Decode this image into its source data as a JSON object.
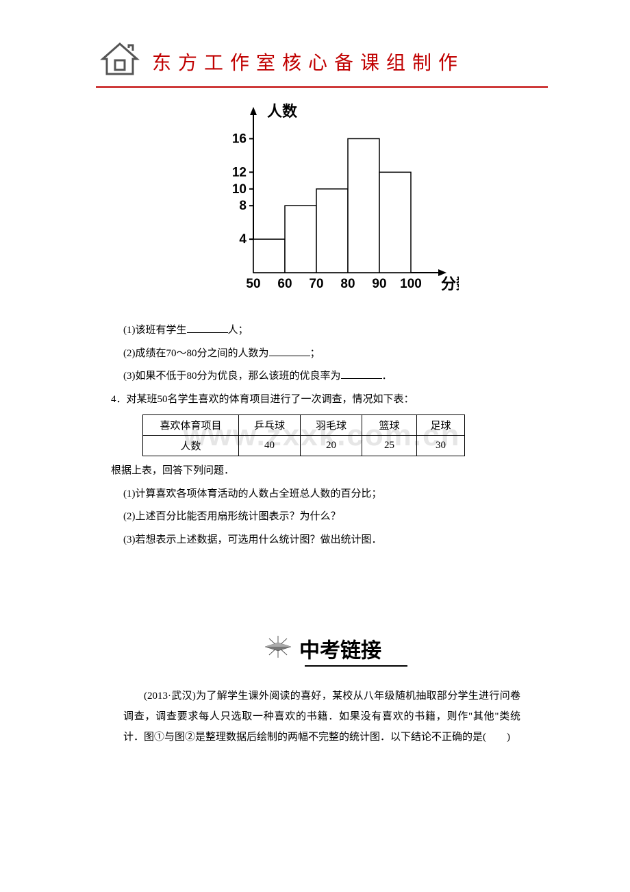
{
  "header": {
    "title": "东方工作室核心备课组制作",
    "logo_caption": "东方工作室",
    "logo_stroke": "#444444",
    "logo_fill": "#666666"
  },
  "histogram": {
    "y_label": "人数",
    "x_label": "分数",
    "y_ticks": [
      4,
      8,
      10,
      12,
      16
    ],
    "x_ticks": [
      50,
      60,
      70,
      80,
      90,
      100
    ],
    "bars": [
      {
        "x0": 50,
        "x1": 60,
        "value": 4
      },
      {
        "x0": 60,
        "x1": 70,
        "value": 8
      },
      {
        "x0": 70,
        "x1": 80,
        "value": 10
      },
      {
        "x0": 80,
        "x1": 90,
        "value": 16
      },
      {
        "x0": 90,
        "x1": 100,
        "value": 12
      }
    ],
    "axis_color": "#000000",
    "bar_fill": "#ffffff",
    "bar_stroke": "#000000",
    "label_font_size": 18,
    "tick_font_size": 17
  },
  "questions_block1": {
    "q1": "(1)该班有学生",
    "q1_suffix": "人；",
    "q2": "(2)成绩在70～80分之间的人数为",
    "q2_suffix": "；",
    "q3": "(3)如果不低于80分为优良，那么该班的优良率为",
    "q3_suffix": "．"
  },
  "question4_intro": "4．对某班50名学生喜欢的体育项目进行了一次调查，情况如下表：",
  "sport_table": {
    "header_col1": "喜欢体育项目",
    "row2_col1": "人数",
    "columns": [
      "乒乓球",
      "羽毛球",
      "篮球",
      "足球"
    ],
    "values": [
      40,
      20,
      25,
      30
    ]
  },
  "watermark": "www.zxxk.com.cn",
  "after_table_line": "根据上表，回答下列问题．",
  "sub_questions": {
    "s1": "(1)计算喜欢各项体育活动的人数占全班总人数的百分比；",
    "s2": "(2)上述百分比能否用扇形统计图表示？为什么？",
    "s3": "(3)若想表示上述数据，可选用什么统计图？做出统计图．"
  },
  "zhongkao": {
    "label": "中考链接",
    "paragraph": "(2013·武汉)为了解学生课外阅读的喜好，某校从八年级随机抽取部分学生进行问卷调查，调查要求每人只选取一种喜欢的书籍．如果没有喜欢的书籍，则作\"其他\"类统计．图①与图②是整理数据后绘制的两幅不完整的统计图．以下结论不正确的是(　　)",
    "compass_stroke": "#555555"
  }
}
